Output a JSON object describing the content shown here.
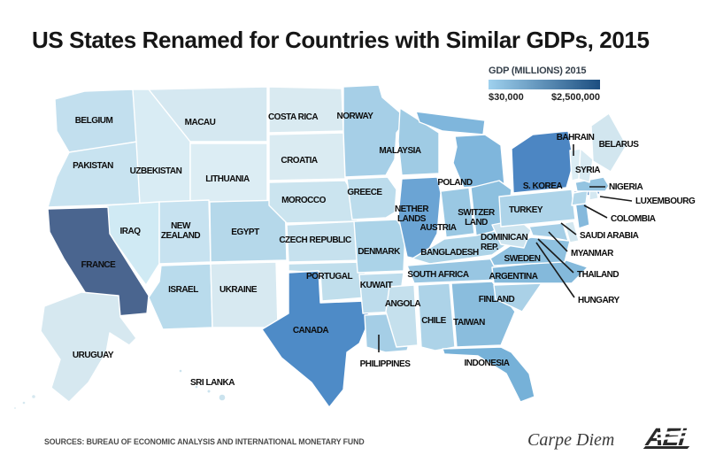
{
  "title": "US States Renamed for Countries with Similar GDPs, 2015",
  "legend": {
    "title": "GDP (MILLIONS) 2015",
    "min_label": "$30,000",
    "max_label": "$2,500,000",
    "gradient_start": "#9fd1ee",
    "gradient_end": "#1c4e80"
  },
  "footer": {
    "sources": "SOURCES: BUREAU OF ECONOMIC ANALYSIS AND INTERNATIONAL MONETARY FUND",
    "credit": "Carpe Diem",
    "logo": "AEI"
  },
  "map": {
    "states": {
      "WA": {
        "state": "Washington",
        "label": "BELGIUM",
        "color": "#c2dfee"
      },
      "OR": {
        "state": "Oregon",
        "label": "PAKISTAN",
        "color": "#c8e3f0"
      },
      "CA": {
        "state": "California",
        "label": "FRANCE",
        "color": "#4a658f"
      },
      "ID": {
        "state": "Idaho",
        "label": "UZBEKISTAN",
        "color": "#d9ecf4"
      },
      "NV": {
        "state": "Nevada",
        "label": "IRAQ",
        "color": "#d0eaf4"
      },
      "UT": {
        "state": "Utah",
        "label": "NEW\nZEALAND",
        "color": "#c7e2f0"
      },
      "AZ": {
        "state": "Arizona",
        "label": "ISRAEL",
        "color": "#b9dbec"
      },
      "MT": {
        "state": "Montana",
        "label": "MACAU",
        "color": "#d5e8f1"
      },
      "WY": {
        "state": "Wyoming",
        "label": "LITHUANIA",
        "color": "#dcedf4"
      },
      "CO": {
        "state": "Colorado",
        "label": "EGYPT",
        "color": "#b5d8ea"
      },
      "NM": {
        "state": "New Mexico",
        "label": "UKRAINE",
        "color": "#d7e9f1"
      },
      "ND": {
        "state": "North Dakota",
        "label": "COSTA RICA",
        "color": "#d9eaf1"
      },
      "SD": {
        "state": "South Dakota",
        "label": "CROATIA",
        "color": "#daebf2"
      },
      "NE": {
        "state": "Nebraska",
        "label": "MOROCCO",
        "color": "#cbe4ef"
      },
      "KS": {
        "state": "Kansas",
        "label": "CZECH REPUBLIC",
        "color": "#c6e1ee"
      },
      "OK": {
        "state": "Oklahoma",
        "label": "PORTUGAL",
        "color": "#c0deec"
      },
      "TX": {
        "state": "Texas",
        "label": "CANADA",
        "color": "#4e8bc7"
      },
      "MN": {
        "state": "Minnesota",
        "label": "NORWAY",
        "color": "#a6cfe7"
      },
      "IA": {
        "state": "Iowa",
        "label": "GREECE",
        "color": "#bcdcec"
      },
      "MO": {
        "state": "Missouri",
        "label": "DENMARK",
        "color": "#abd3e8"
      },
      "AR": {
        "state": "Arkansas",
        "label": "KUWAIT",
        "color": "#bddcec"
      },
      "LA": {
        "state": "Louisiana",
        "label": "PHILIPPINES",
        "color": "#a5cee6"
      },
      "WI": {
        "state": "Wisconsin",
        "label": "MALAYSIA",
        "color": "#9fcbe4"
      },
      "IL": {
        "state": "Illinois",
        "label": "NETHER\nLANDS",
        "color": "#6ba4d4"
      },
      "MI": {
        "state": "Michigan",
        "label": "POLAND",
        "color": "#7fb6dc"
      },
      "IN": {
        "state": "Indiana",
        "label": "AUSTRIA",
        "color": "#9ac8e3"
      },
      "OH": {
        "state": "Ohio",
        "label": "SWITZER\nLAND",
        "color": "#8dc0df"
      },
      "KY": {
        "state": "Kentucky",
        "label": "BANGLADESH",
        "color": "#aed4e8"
      },
      "TN": {
        "state": "Tennessee",
        "label": "SOUTH AFRICA",
        "color": "#98c6e2"
      },
      "MS": {
        "state": "Mississippi",
        "label": "ANGOLA",
        "color": "#c5e0ed"
      },
      "AL": {
        "state": "Alabama",
        "label": "CHILE",
        "color": "#add3e8"
      },
      "GA": {
        "state": "Georgia",
        "label": "TAIWAN",
        "color": "#8abddd"
      },
      "FL": {
        "state": "Florida",
        "label": "INDONESIA",
        "color": "#76b1d8"
      },
      "SC": {
        "state": "South Carolina",
        "label": "FINLAND",
        "color": "#aad1e7"
      },
      "NC": {
        "state": "North Carolina",
        "label": "ARGENTINA",
        "color": "#84b9db"
      },
      "VA": {
        "state": "Virginia",
        "label": "SWEDEN",
        "color": "#8fc1e0"
      },
      "WV": {
        "state": "West Virginia",
        "label": "DOMINICAN\nREP.",
        "color": "#cde4ef"
      },
      "PA": {
        "state": "Pennsylvania",
        "label": "TURKEY",
        "color": "#aed4e9"
      },
      "NY": {
        "state": "New York",
        "label": "S. KOREA",
        "color": "#4c86c3"
      },
      "ME": {
        "state": "Maine",
        "label": "BELARUS",
        "color": "#d2e6ef"
      },
      "NH": {
        "state": "New Hampshire",
        "label": "SYRIA",
        "color": "#d8eaf2"
      },
      "VT": {
        "state": "Vermont",
        "label": "BAHRAIN",
        "color": "#dcedf4"
      },
      "MA": {
        "state": "Massachusetts",
        "label": "NIGERIA",
        "color": "#94c4e1"
      },
      "RI": {
        "state": "Rhode Island",
        "label": "LUXEMBOURG",
        "color": "#d4e8f1"
      },
      "CT": {
        "state": "Connecticut",
        "label": "COLOMBIA",
        "color": "#b3d7ea"
      },
      "NJ": {
        "state": "New Jersey",
        "label": "SAUDI ARABIA",
        "color": "#85b9dc"
      },
      "DE": {
        "state": "Delaware",
        "label": "MYANMAR",
        "color": "#d3e7f0"
      },
      "MD": {
        "state": "Maryland",
        "label": "THAILAND",
        "color": "#a5cee6"
      },
      "DC": {
        "state": "Washington D.C.",
        "label": "HUNGARY",
        "color": "#c0deec"
      },
      "AK": {
        "state": "Alaska",
        "label": "URUGUAY",
        "color": "#d6e8f0"
      },
      "HI": {
        "state": "Hawaii",
        "label": "SRI LANKA",
        "color": "#cbe3ee"
      }
    }
  }
}
